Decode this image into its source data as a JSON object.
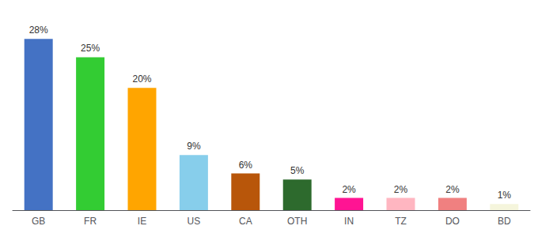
{
  "chart_data": {
    "type": "bar",
    "categories": [
      "GB",
      "FR",
      "IE",
      "US",
      "CA",
      "OTH",
      "IN",
      "TZ",
      "DO",
      "BD"
    ],
    "values": [
      28,
      25,
      20,
      9,
      6,
      5,
      2,
      2,
      2,
      1
    ],
    "value_labels": [
      "28%",
      "25%",
      "20%",
      "9%",
      "6%",
      "5%",
      "2%",
      "2%",
      "2%",
      "1%"
    ],
    "colors": [
      "#4472C4",
      "#33CC33",
      "#FFA500",
      "#87CEEB",
      "#B8560A",
      "#2D6A2D",
      "#FF1493",
      "#FFB6C1",
      "#F08080",
      "#F5F5DC"
    ],
    "ylim": [
      0,
      31
    ],
    "grid": false,
    "data_labels": true,
    "tick_labels": "x"
  }
}
